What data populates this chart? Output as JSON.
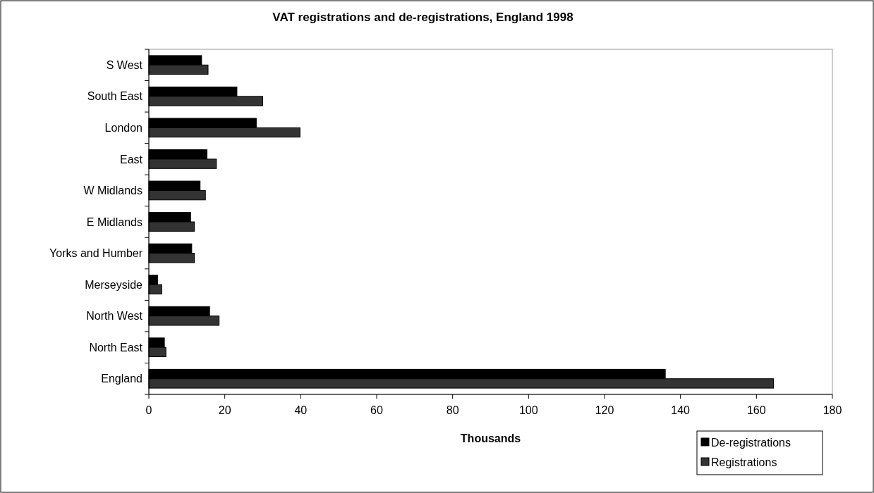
{
  "chart_data": {
    "type": "bar",
    "orientation": "horizontal",
    "title": "VAT registrations and de-registrations, England 1998",
    "xlabel": "Thousands",
    "categories": [
      "S West",
      "South East",
      "London",
      "East",
      "W Midlands",
      "E Midlands",
      "Yorks and Humber",
      "Merseyside",
      "North West",
      "North East",
      "England"
    ],
    "series": [
      {
        "name": "De-registrations",
        "color": "#000000",
        "values": [
          13.9,
          23.2,
          28.3,
          15.3,
          13.5,
          11.0,
          11.3,
          2.3,
          16.0,
          4.1,
          136
        ]
      },
      {
        "name": "Registrations",
        "color": "#333333",
        "values": [
          15.6,
          30.0,
          39.8,
          17.8,
          14.9,
          12.0,
          12.0,
          3.4,
          18.5,
          4.5,
          164.5
        ]
      }
    ],
    "xlim": [
      0,
      180
    ],
    "xticks": [
      0,
      20,
      40,
      60,
      80,
      100,
      120,
      140,
      160,
      180
    ],
    "grid": false,
    "legend": "bottom right"
  }
}
